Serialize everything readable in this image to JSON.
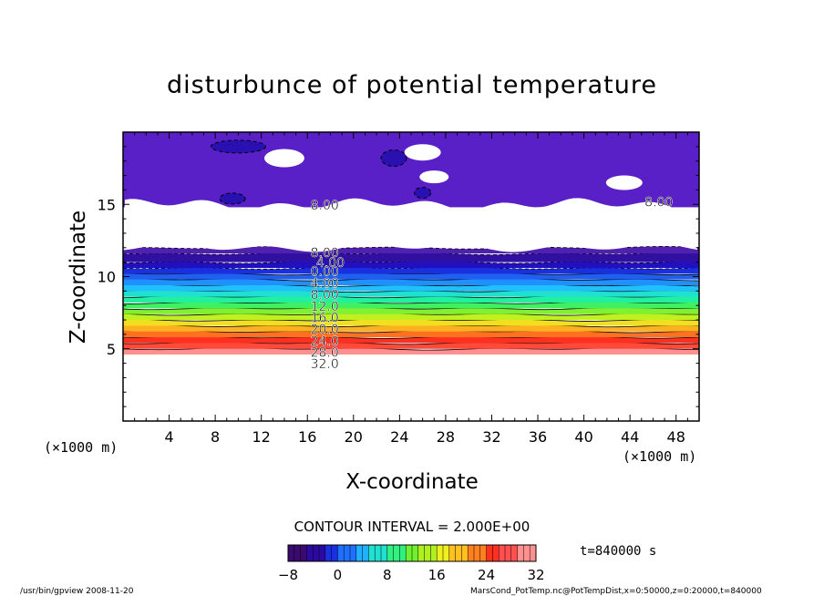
{
  "chart_data": {
    "type": "contour",
    "title": "disturbunce of potential temperature",
    "xlabel": "X-coordinate",
    "ylabel": "Z-coordinate",
    "x_unit": "(×1000 m)",
    "y_unit": "(×1000 m)",
    "xlim": [
      0,
      50
    ],
    "ylim": [
      0,
      20
    ],
    "x_ticks": [
      4,
      8,
      12,
      16,
      20,
      24,
      28,
      32,
      36,
      40,
      44,
      48
    ],
    "y_ticks": [
      5,
      10,
      15
    ],
    "contour_interval_text": "CONTOUR INTERVAL = 2.000E+00",
    "contour_interval": 2.0,
    "time_text": "t=840000 s",
    "colorbar": {
      "min": -8,
      "max": 32,
      "ticks": [
        -8,
        0,
        8,
        16,
        24,
        32
      ],
      "colors": [
        "#3a0a6e",
        "#2a0aa0",
        "#1a30e0",
        "#2070ff",
        "#20b0ff",
        "#20e0d0",
        "#30f080",
        "#70f030",
        "#b0f020",
        "#f0f020",
        "#ffc020",
        "#ff8020",
        "#ff3020",
        "#ff5050",
        "#ff9090"
      ]
    },
    "contour_labels": [
      {
        "text": "8.00",
        "x": 17.5,
        "z": 14.9
      },
      {
        "text": "8.00",
        "x": 46.5,
        "z": 15.1
      },
      {
        "text": "8.00",
        "x": 17.5,
        "z": 11.6
      },
      {
        "text": "4.00",
        "x": 18.0,
        "z": 10.9
      },
      {
        "text": "0.00",
        "x": 17.5,
        "z": 10.3
      },
      {
        "text": "4.00",
        "x": 17.5,
        "z": 9.5
      },
      {
        "text": "8.00",
        "x": 17.5,
        "z": 8.7
      },
      {
        "text": "12.0",
        "x": 17.5,
        "z": 7.9
      },
      {
        "text": "16.0",
        "x": 17.5,
        "z": 7.1
      },
      {
        "text": "20.0",
        "x": 17.5,
        "z": 6.3
      },
      {
        "text": "24.0",
        "x": 17.5,
        "z": 5.5
      },
      {
        "text": "28.0",
        "x": 17.5,
        "z": 4.7
      },
      {
        "text": "32.0",
        "x": 17.5,
        "z": 3.9
      }
    ],
    "layers": [
      {
        "z0": 4.6,
        "z1": 5.0,
        "color": "#ff9090"
      },
      {
        "z0": 5.0,
        "z1": 5.4,
        "color": "#ff4a3a"
      },
      {
        "z0": 5.4,
        "z1": 5.8,
        "color": "#ff3020"
      },
      {
        "z0": 5.8,
        "z1": 6.2,
        "color": "#ff7020"
      },
      {
        "z0": 6.2,
        "z1": 6.6,
        "color": "#ffb020"
      },
      {
        "z0": 6.6,
        "z1": 7.0,
        "color": "#f0e020"
      },
      {
        "z0": 7.0,
        "z1": 7.4,
        "color": "#c0f020"
      },
      {
        "z0": 7.4,
        "z1": 7.8,
        "color": "#80f030"
      },
      {
        "z0": 7.8,
        "z1": 8.2,
        "color": "#40f060"
      },
      {
        "z0": 8.2,
        "z1": 8.6,
        "color": "#20f0a0"
      },
      {
        "z0": 8.6,
        "z1": 9.0,
        "color": "#20e0d0"
      },
      {
        "z0": 9.0,
        "z1": 9.4,
        "color": "#20c0ff"
      },
      {
        "z0": 9.4,
        "z1": 9.8,
        "color": "#2090ff"
      },
      {
        "z0": 9.8,
        "z1": 10.2,
        "color": "#2060f0"
      },
      {
        "z0": 10.2,
        "z1": 10.6,
        "color": "#1a30e0"
      },
      {
        "z0": 10.6,
        "z1": 11.0,
        "color": "#2010c0"
      },
      {
        "z0": 11.0,
        "z1": 11.6,
        "color": "#3010a0"
      },
      {
        "z0": 11.6,
        "z1": 12.0,
        "color": "#5020b0"
      }
    ],
    "upper_region": {
      "z0": 14.8,
      "z1": 20.0,
      "color": "#5a20c8"
    },
    "blank_band": {
      "z0": 12.0,
      "z1": 15.0
    },
    "bottom_blank": {
      "z0": 0.0,
      "z1": 4.6
    }
  },
  "footer": {
    "left": "/usr/bin/gpview   2008-11-20",
    "right": "MarsCond_PotTemp.nc@PotTempDist,x=0:50000,z=0:20000,t=840000"
  }
}
